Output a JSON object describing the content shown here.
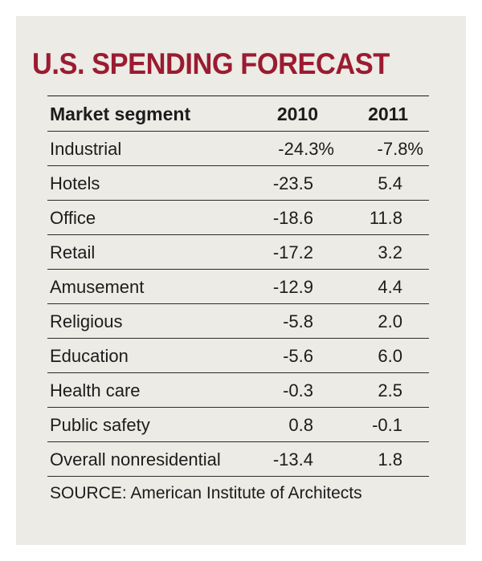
{
  "title": "U.S. SPENDING FORECAST",
  "colors": {
    "title": "#9b1b30",
    "panel_background": "#ecebe5",
    "text": "#1c1c1c"
  },
  "chart_data": {
    "type": "table",
    "title": "U.S. SPENDING FORECAST",
    "columns": [
      "Market segment",
      "2010",
      "2011"
    ],
    "rows": [
      {
        "segment": "Industrial",
        "y2010": "-24.3%",
        "y2011": "-7.8%"
      },
      {
        "segment": "Hotels",
        "y2010": "-23.5",
        "y2011": "5.4"
      },
      {
        "segment": "Office",
        "y2010": "-18.6",
        "y2011": "11.8"
      },
      {
        "segment": "Retail",
        "y2010": "-17.2",
        "y2011": "3.2"
      },
      {
        "segment": "Amusement",
        "y2010": "-12.9",
        "y2011": "4.4"
      },
      {
        "segment": "Religious",
        "y2010": "-5.8",
        "y2011": "2.0"
      },
      {
        "segment": "Education",
        "y2010": "-5.6",
        "y2011": "6.0"
      },
      {
        "segment": "Health care",
        "y2010": "-0.3",
        "y2011": "2.5"
      },
      {
        "segment": "Public safety",
        "y2010": "0.8",
        "y2011": "-0.1"
      },
      {
        "segment": "Overall nonresidential",
        "y2010": "-13.4",
        "y2011": "1.8"
      }
    ],
    "source": "SOURCE: American Institute of Architects"
  }
}
